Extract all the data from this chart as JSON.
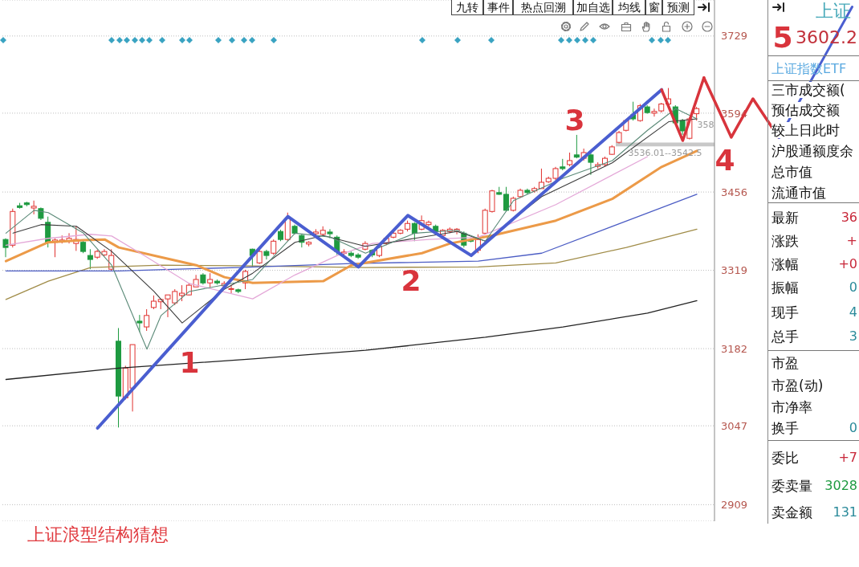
{
  "chart_data": [
    {
      "type": "other",
      "annotations": [
        "九转",
        "事件",
        "热点回溯",
        "加自选",
        "均线",
        "窗",
        "预测"
      ]
    },
    {
      "type": "candlestick",
      "title": "上证浪型结构猜想",
      "categories": [
        null,
        null,
        null,
        null,
        null,
        null,
        null,
        null,
        null,
        null,
        null,
        null,
        null,
        null,
        null,
        null,
        null,
        null,
        null,
        null,
        null,
        null,
        null,
        null,
        null,
        null,
        null,
        null,
        null,
        null,
        null,
        null,
        null,
        null,
        null,
        null,
        null,
        null,
        null,
        null,
        null,
        null,
        null,
        null,
        null,
        null,
        null,
        null,
        null,
        null,
        null,
        null,
        null,
        null,
        null,
        null,
        null,
        null,
        null,
        null,
        null,
        null,
        null,
        null,
        null,
        null,
        null,
        null,
        null,
        null,
        null,
        null,
        null,
        null,
        null,
        null,
        null,
        null,
        null,
        null,
        null,
        null,
        null,
        null,
        null,
        null,
        null,
        null,
        null,
        null,
        null,
        null,
        null,
        null,
        null,
        null,
        null,
        null,
        null,
        null,
        null
      ],
      "ohlc": [
        [
          3373,
          3375,
          3342,
          3359
        ],
        [
          3363,
          3427,
          3359,
          3422
        ],
        [
          3432,
          3437,
          3427,
          3429
        ],
        [
          3437,
          3439,
          3431,
          3434
        ],
        [
          3428,
          3441,
          3417,
          3431
        ],
        [
          3427,
          3429,
          3407,
          3410
        ],
        [
          3403,
          3413,
          3359,
          3368
        ],
        [
          3368,
          3375,
          3342,
          3372
        ],
        [
          3369,
          3380,
          3366,
          3372
        ],
        [
          3370,
          3384,
          3366,
          3375
        ],
        [
          3366,
          3396,
          3353,
          3373
        ],
        [
          3368,
          3373,
          3349,
          3352
        ],
        [
          3345,
          3356,
          3321,
          3338
        ],
        [
          3342,
          3355,
          3339,
          3352
        ],
        [
          3346,
          3356,
          3344,
          3352
        ],
        [
          3321,
          3356,
          3318,
          3345
        ],
        [
          3195,
          3218,
          3044,
          3099
        ],
        [
          3096,
          3152,
          3093,
          3148
        ],
        [
          3113,
          3189,
          3072,
          3189
        ],
        [
          3230,
          3241,
          3211,
          3227
        ],
        [
          3220,
          3251,
          3213,
          3240
        ],
        [
          3254,
          3275,
          3251,
          3265
        ],
        [
          3264,
          3269,
          3251,
          3268
        ],
        [
          3269,
          3276,
          3237,
          3276
        ],
        [
          3262,
          3286,
          3258,
          3282
        ],
        [
          3275,
          3293,
          3265,
          3279
        ],
        [
          3276,
          3297,
          3275,
          3293
        ],
        [
          3290,
          3311,
          3290,
          3303
        ],
        [
          3311,
          3314,
          3294,
          3297
        ],
        [
          3297,
          3314,
          3289,
          3303
        ],
        [
          3300,
          3303,
          3294,
          3297
        ],
        [
          3292,
          3300,
          3289,
          3296
        ],
        [
          3286,
          3293,
          3279,
          3287
        ],
        [
          3285,
          3287,
          3279,
          3282
        ],
        [
          3297,
          3320,
          3286,
          3317
        ],
        [
          3356,
          3357,
          3325,
          3345
        ],
        [
          3332,
          3355,
          3330,
          3352
        ],
        [
          3352,
          3355,
          3338,
          3345
        ],
        [
          3349,
          3373,
          3346,
          3370
        ],
        [
          3387,
          3390,
          3370,
          3373
        ],
        [
          3373,
          3420,
          3370,
          3410
        ],
        [
          3396,
          3399,
          3382,
          3384
        ],
        [
          3380,
          3382,
          3359,
          3368
        ],
        [
          3365,
          3370,
          3361,
          3368
        ],
        [
          3383,
          3391,
          3377,
          3386
        ],
        [
          3382,
          3396,
          3380,
          3389
        ],
        [
          3386,
          3391,
          3375,
          3383
        ],
        [
          3377,
          3380,
          3346,
          3352
        ],
        [
          3349,
          3356,
          3345,
          3351
        ],
        [
          3349,
          3352,
          3342,
          3345
        ],
        [
          3346,
          3349,
          3339,
          3342
        ],
        [
          3356,
          3370,
          3354,
          3366
        ],
        [
          3354,
          3356,
          3342,
          3346
        ],
        [
          3345,
          3363,
          3342,
          3361
        ],
        [
          3366,
          3377,
          3363,
          3375
        ],
        [
          3377,
          3387,
          3375,
          3384
        ],
        [
          3384,
          3391,
          3382,
          3389
        ],
        [
          3391,
          3406,
          3387,
          3401
        ],
        [
          3401,
          3403,
          3370,
          3384
        ],
        [
          3391,
          3415,
          3389,
          3406
        ],
        [
          3399,
          3406,
          3396,
          3403
        ],
        [
          3396,
          3399,
          3384,
          3387
        ],
        [
          3380,
          3391,
          3377,
          3389
        ],
        [
          3387,
          3394,
          3384,
          3391
        ],
        [
          3387,
          3393,
          3382,
          3391
        ],
        [
          3384,
          3387,
          3359,
          3363
        ],
        [
          3372,
          3375,
          3368,
          3370
        ],
        [
          3354,
          3382,
          3349,
          3373
        ],
        [
          3384,
          3427,
          3382,
          3424
        ],
        [
          3422,
          3460,
          3420,
          3458
        ],
        [
          3455,
          3465,
          3451,
          3452
        ],
        [
          3452,
          3465,
          3422,
          3424
        ],
        [
          3424,
          3448,
          3422,
          3445
        ],
        [
          3448,
          3462,
          3446,
          3459
        ],
        [
          3459,
          3462,
          3452,
          3455
        ],
        [
          3458,
          3465,
          3455,
          3462
        ],
        [
          3462,
          3497,
          3462,
          3473
        ],
        [
          3474,
          3483,
          3472,
          3480
        ],
        [
          3480,
          3500,
          3477,
          3497
        ],
        [
          3500,
          3514,
          3494,
          3497
        ],
        [
          3504,
          3525,
          3501,
          3511
        ],
        [
          3521,
          3556,
          3515,
          3517
        ],
        [
          3515,
          3532,
          3511,
          3525
        ],
        [
          3521,
          3525,
          3486,
          3508
        ],
        [
          3501,
          3508,
          3497,
          3504
        ],
        [
          3504,
          3518,
          3501,
          3515
        ],
        [
          3522,
          3538,
          3521,
          3535
        ],
        [
          3543,
          3563,
          3541,
          3560
        ],
        [
          3564,
          3584,
          3562,
          3581
        ],
        [
          3591,
          3614,
          3581,
          3584
        ],
        [
          3581,
          3610,
          3579,
          3607
        ],
        [
          3605,
          3608,
          3593,
          3595
        ],
        [
          3594,
          3602,
          3588,
          3597
        ],
        [
          3598,
          3612,
          3595,
          3610
        ],
        [
          3610,
          3638,
          3607,
          3619
        ],
        [
          3605,
          3608,
          3574,
          3577
        ],
        [
          3581,
          3584,
          3556,
          3563
        ],
        [
          3550,
          3587,
          3548,
          3584
        ],
        [
          3593,
          3605,
          3581,
          3602
        ],
        null,
        null
      ],
      "colors": [
        "#1e9a40",
        "#e0312f",
        "#1e9a40",
        "#1e9a40",
        "#e0312f",
        "#1e9a40",
        "#1e9a40",
        "#e0312f",
        "#e0312f",
        "#e0312f",
        "#e0312f",
        "#1e9a40",
        "#1e9a40",
        "#e0312f",
        "#e0312f",
        "#e0312f",
        "#1e9a40",
        "#e0312f",
        "#e0312f",
        "#1e9a40",
        "#e0312f",
        "#e0312f",
        "#e0312f",
        "#e0312f",
        "#e0312f",
        "#e0312f",
        "#e0312f",
        "#e0312f",
        "#1e9a40",
        "#e0312f",
        "#1e9a40",
        "#e0312f",
        "#e0312f",
        "#1e9a40",
        "#e0312f",
        "#1e9a40",
        "#e0312f",
        "#1e9a40",
        "#e0312f",
        "#1e9a40",
        "#e0312f",
        "#1e9a40",
        "#1e9a40",
        "#e0312f",
        "#e0312f",
        "#e0312f",
        "#1e9a40",
        "#1e9a40",
        "#e0312f",
        "#1e9a40",
        "#1e9a40",
        "#e0312f",
        "#1e9a40",
        "#e0312f",
        "#e0312f",
        "#e0312f",
        "#e0312f",
        "#e0312f",
        "#1e9a40",
        "#e0312f",
        "#e0312f",
        "#1e9a40",
        "#e0312f",
        "#e0312f",
        "#e0312f",
        "#1e9a40",
        "#1e9a40",
        "#e0312f",
        "#e0312f",
        "#e0312f",
        "#1e9a40",
        "#1e9a40",
        "#e0312f",
        "#e0312f",
        "#1e9a40",
        "#e0312f",
        "#e0312f",
        "#e0312f",
        "#e0312f",
        "#1e9a40",
        "#e0312f",
        "#1e9a40",
        "#e0312f",
        "#1e9a40",
        "#e0312f",
        "#e0312f",
        "#e0312f",
        "#e0312f",
        "#e0312f",
        "#1e9a40",
        "#e0312f",
        "#1e9a40",
        "#e0312f",
        "#e0312f",
        "#e0312f",
        "#1e9a40",
        "#1e9a40",
        "#e0312f",
        "#e0312f",
        null,
        null
      ],
      "series": [
        {
          "type": "line",
          "color": "#222222",
          "values": [
            3128,
            null,
            null,
            null,
            null,
            null,
            null,
            null,
            null,
            null,
            null,
            null,
            null,
            null,
            null,
            null,
            3148,
            null,
            null,
            null,
            null,
            null,
            null,
            null,
            null,
            null,
            null,
            null,
            null,
            null,
            null,
            null,
            null,
            null,
            null,
            3164,
            null,
            null,
            null,
            null,
            null,
            null,
            null,
            null,
            null,
            null,
            null,
            null,
            null,
            null,
            null,
            3179,
            null,
            null,
            null,
            null,
            null,
            null,
            null,
            null,
            null,
            null,
            null,
            null,
            null,
            null,
            null,
            null,
            3202,
            null,
            null,
            null,
            null,
            null,
            null,
            null,
            null,
            null,
            null,
            3220,
            null,
            null,
            null,
            null,
            null,
            null,
            null,
            null,
            null,
            null,
            null,
            3244,
            null,
            null,
            null,
            null,
            null,
            null,
            3266,
            null,
            null
          ]
        },
        {
          "type": "line",
          "color": "#a08c48",
          "values": [
            3268,
            null,
            null,
            null,
            null,
            null,
            3300,
            null,
            null,
            null,
            null,
            null,
            3324,
            null,
            null,
            null,
            null,
            null,
            null,
            null,
            null,
            null,
            3328,
            null,
            null,
            null,
            null,
            null,
            null,
            null,
            null,
            null,
            null,
            3327,
            null,
            null,
            null,
            null,
            null,
            null,
            null,
            null,
            null,
            null,
            null,
            null,
            null,
            null,
            null,
            null,
            null,
            3324,
            null,
            null,
            null,
            null,
            null,
            null,
            null,
            null,
            null,
            null,
            null,
            null,
            null,
            null,
            null,
            3325,
            null,
            null,
            null,
            null,
            null,
            null,
            null,
            null,
            null,
            null,
            3332,
            null,
            null,
            null,
            null,
            null,
            null,
            null,
            null,
            null,
            3359,
            null,
            null,
            null,
            null,
            null,
            null,
            null,
            null,
            null,
            3391,
            null,
            null
          ]
        },
        {
          "type": "line",
          "color": "#4b5cc4",
          "values": [
            3318,
            null,
            null,
            null,
            null,
            null,
            null,
            null,
            null,
            null,
            null,
            null,
            null,
            null,
            null,
            null,
            3318,
            null,
            null,
            null,
            null,
            null,
            null,
            null,
            null,
            null,
            null,
            null,
            null,
            null,
            null,
            null,
            null,
            3324,
            null,
            null,
            null,
            null,
            null,
            null,
            null,
            null,
            null,
            null,
            null,
            null,
            null,
            null,
            null,
            3331,
            null,
            null,
            null,
            null,
            null,
            null,
            null,
            null,
            null,
            null,
            null,
            null,
            null,
            null,
            null,
            null,
            null,
            3335,
            null,
            null,
            null,
            null,
            null,
            null,
            null,
            null,
            3349,
            null,
            null,
            null,
            null,
            null,
            null,
            null,
            null,
            null,
            3396,
            null,
            null,
            null,
            null,
            null,
            null,
            null,
            null,
            null,
            null,
            null,
            3452,
            null,
            null
          ]
        },
        {
          "type": "line",
          "color": "#ec9a48",
          "values": [
            3335,
            null,
            null,
            null,
            null,
            null,
            3368,
            null,
            null,
            null,
            null,
            3372,
            null,
            null,
            3373,
            null,
            3359,
            null,
            null,
            null,
            null,
            null,
            3342,
            null,
            null,
            null,
            null,
            3328,
            null,
            null,
            null,
            3307,
            null,
            null,
            null,
            3297,
            null,
            null,
            null,
            null,
            null,
            null,
            null,
            null,
            null,
            3300,
            null,
            null,
            null,
            3328,
            null,
            null,
            null,
            null,
            null,
            null,
            null,
            null,
            null,
            3349,
            null,
            null,
            null,
            3366,
            null,
            null,
            null,
            null,
            null,
            3380,
            null,
            null,
            null,
            null,
            null,
            null,
            null,
            null,
            3406,
            null,
            null,
            null,
            null,
            null,
            null,
            null,
            3444,
            null,
            null,
            null,
            null,
            null,
            null,
            3500,
            null,
            null,
            null,
            null,
            3528,
            null,
            null
          ]
        },
        {
          "type": "line",
          "color": "#e4a8d8",
          "values": [
            3363,
            null,
            null,
            null,
            null,
            null,
            3375,
            null,
            null,
            null,
            null,
            null,
            3382,
            null,
            null,
            3379,
            null,
            null,
            null,
            null,
            3342,
            null,
            null,
            null,
            null,
            null,
            3296,
            null,
            null,
            null,
            null,
            null,
            null,
            null,
            null,
            3269,
            null,
            null,
            null,
            null,
            null,
            3311,
            null,
            null,
            null,
            null,
            null,
            3345,
            null,
            null,
            null,
            null,
            3366,
            null,
            null,
            null,
            null,
            null,
            null,
            null,
            3373,
            null,
            null,
            null,
            null,
            null,
            null,
            3377,
            null,
            null,
            null,
            null,
            null,
            null,
            null,
            null,
            null,
            null,
            3434,
            null,
            null,
            null,
            null,
            null,
            null,
            null,
            null,
            null,
            null,
            null,
            null,
            3518,
            null,
            null,
            null,
            null,
            null,
            null,
            null,
            null,
            null
          ]
        },
        {
          "type": "line",
          "color": "#3c3c3c",
          "values": [
            null,
            3384,
            null,
            null,
            null,
            3399,
            null,
            null,
            null,
            null,
            3396,
            null,
            null,
            null,
            null,
            3352,
            null,
            null,
            null,
            null,
            null,
            3282,
            null,
            null,
            null,
            3227,
            null,
            null,
            null,
            null,
            null,
            3286,
            null,
            null,
            null,
            3314,
            null,
            null,
            null,
            null,
            null,
            3368,
            null,
            null,
            null,
            3380,
            null,
            null,
            null,
            null,
            null,
            3361,
            null,
            null,
            null,
            null,
            null,
            null,
            3375,
            null,
            null,
            null,
            null,
            null,
            3387,
            null,
            null,
            null,
            3370,
            null,
            null,
            null,
            null,
            null,
            null,
            null,
            3448,
            null,
            null,
            null,
            null,
            null,
            null,
            null,
            null,
            null,
            3507,
            null,
            null,
            null,
            null,
            null,
            null,
            null,
            3579,
            null,
            null,
            null,
            3584,
            null,
            null
          ]
        },
        {
          "type": "line",
          "color": "#5b8a78",
          "values": [
            3384,
            null,
            null,
            null,
            3424,
            null,
            3420,
            null,
            null,
            null,
            null,
            3384,
            null,
            null,
            null,
            3328,
            null,
            null,
            null,
            null,
            3181,
            null,
            3240,
            null,
            null,
            null,
            3282,
            null,
            null,
            null,
            null,
            null,
            null,
            null,
            null,
            3303,
            null,
            null,
            null,
            null,
            null,
            3384,
            null,
            null,
            null,
            null,
            3377,
            null,
            null,
            null,
            null,
            3349,
            null,
            null,
            null,
            null,
            null,
            null,
            3384,
            null,
            null,
            null,
            null,
            null,
            3389,
            null,
            null,
            null,
            3370,
            null,
            null,
            null,
            3441,
            null,
            null,
            null,
            null,
            null,
            null,
            3480,
            null,
            null,
            null,
            null,
            null,
            null,
            3511,
            null,
            null,
            null,
            null,
            3564,
            null,
            null,
            null,
            3602,
            null,
            null,
            3584,
            null,
            null
          ]
        },
        {
          "type": "line",
          "color": "#4a5ed0",
          "values": [
            null,
            null,
            null,
            null,
            null,
            null,
            null,
            null,
            null,
            null,
            null,
            null,
            null,
            3043,
            null,
            null,
            null,
            null,
            null,
            null,
            null,
            null,
            null,
            null,
            null,
            null,
            null,
            null,
            null,
            null,
            null,
            null,
            null,
            null,
            null,
            null,
            null,
            null,
            null,
            null,
            3413,
            null,
            null,
            null,
            null,
            null,
            null,
            null,
            null,
            null,
            3325,
            null,
            null,
            null,
            null,
            null,
            null,
            3415,
            null,
            null,
            null,
            null,
            null,
            null,
            null,
            null,
            3345,
            null,
            null,
            null,
            null,
            null,
            null,
            null,
            null,
            null,
            null,
            null,
            null,
            null,
            null,
            null,
            null,
            null,
            null,
            null,
            null,
            null,
            null,
            null,
            null,
            null,
            null,
            3635,
            null,
            null,
            null,
            null,
            null,
            null,
            null
          ]
        },
        {
          "type": "line",
          "color": "#d8343c",
          "values": [
            null,
            null,
            null,
            null,
            null,
            null,
            null,
            null,
            null,
            null,
            null,
            null,
            null,
            null,
            null,
            null,
            null,
            null,
            null,
            null,
            null,
            null,
            null,
            null,
            null,
            null,
            null,
            null,
            null,
            null,
            null,
            null,
            null,
            null,
            null,
            null,
            null,
            null,
            null,
            null,
            null,
            null,
            null,
            null,
            null,
            null,
            null,
            null,
            null,
            null,
            null,
            null,
            null,
            null,
            null,
            null,
            null,
            null,
            null,
            null,
            null,
            null,
            null,
            null,
            null,
            null,
            null,
            null,
            null,
            null,
            null,
            null,
            null,
            null,
            null,
            null,
            null,
            null,
            null,
            null,
            null,
            null,
            null,
            null,
            null,
            null,
            null,
            null,
            null,
            null,
            null,
            null,
            null,
            3635,
            null,
            null,
            3546,
            null,
            null,
            3656,
            null
          ]
        }
      ],
      "ylim": [
        2880,
        3792
      ],
      "yticks": [
        2909,
        3047,
        3182,
        3319,
        3456,
        3594,
        3729
      ],
      "grid": "y",
      "tick_labels": "y",
      "bands": [
        {
          "axis": "y",
          "from": 3536.01,
          "to": 3542.5,
          "label": "3536.01--3542.5",
          "color": "#c8c8c8"
        }
      ],
      "annotations": [
        "1",
        "2",
        "3",
        "4",
        "5",
        "358"
      ]
    },
    {
      "type": "other",
      "annotations": [
        "上证",
        "3602.2",
        "上证指数ETF",
        "三市成交额(",
        "预估成交额",
        "较上日此时",
        "沪股通额度余",
        "总市值",
        "流通市值",
        "最新",
        "36",
        "涨跌",
        "+",
        "涨幅",
        "+0",
        "振幅",
        "0",
        "现手",
        "4",
        "总手",
        "3",
        "市盈",
        "市盈(动)",
        "市净率",
        "换手",
        "0",
        "委比",
        "+7",
        "委卖量",
        "3028",
        "卖金额",
        "131"
      ]
    }
  ]
}
